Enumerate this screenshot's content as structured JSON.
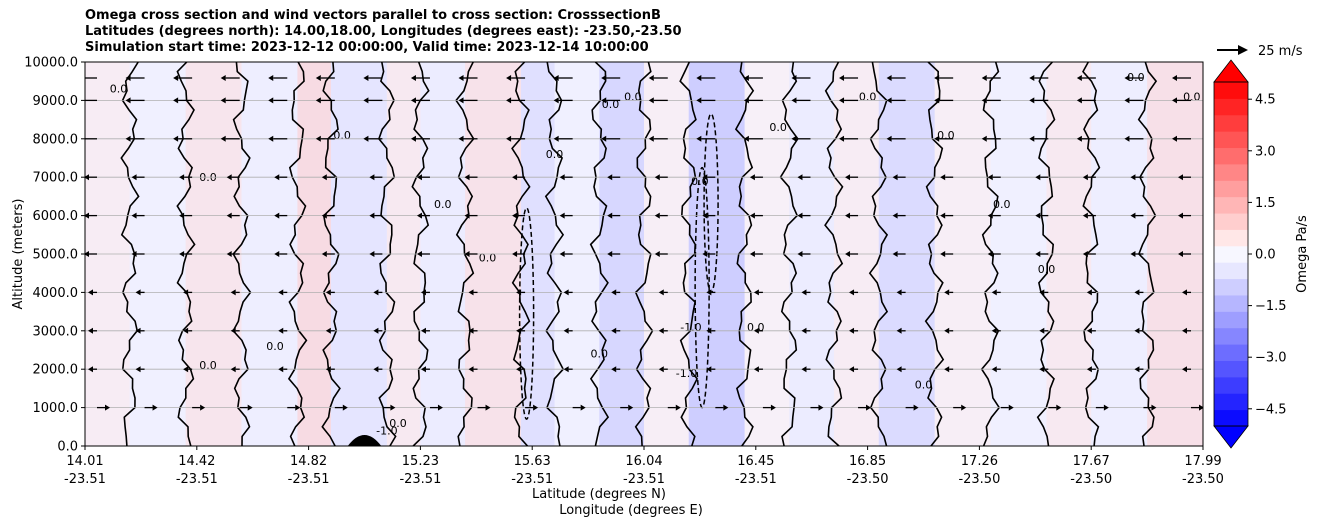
{
  "titles": [
    "Omega cross section and wind vectors parallel to cross section: CrosssectionB",
    "Latitudes (degrees north): 14.00,18.00, Longitudes (degrees east): -23.50,-23.50",
    "Simulation start time: 2023-12-12 00:00:00, Valid time: 2023-12-14 10:00:00"
  ],
  "chart_data": {
    "type": "heatmap",
    "title": "Omega cross section and wind vectors parallel to cross section: CrosssectionB",
    "ylabel": "Altitude (meters)",
    "xlabel_lines": [
      "Latitude (degrees N)",
      "Longitude (degrees E)"
    ],
    "ylim": [
      0,
      10000
    ],
    "y_ticks": [
      0,
      1000,
      2000,
      3000,
      4000,
      5000,
      6000,
      7000,
      8000,
      9000,
      10000
    ],
    "y_tick_labels": [
      "0.0",
      "1000.0",
      "2000.0",
      "3000.0",
      "4000.0",
      "5000.0",
      "6000.0",
      "7000.0",
      "8000.0",
      "9000.0",
      "10000.0"
    ],
    "x_ticks": [
      {
        "lat": "14.01",
        "lon": "-23.51"
      },
      {
        "lat": "14.42",
        "lon": "-23.51"
      },
      {
        "lat": "14.82",
        "lon": "-23.51"
      },
      {
        "lat": "15.23",
        "lon": "-23.51"
      },
      {
        "lat": "15.63",
        "lon": "-23.51"
      },
      {
        "lat": "16.04",
        "lon": "-23.51"
      },
      {
        "lat": "16.45",
        "lon": "-23.51"
      },
      {
        "lat": "16.85",
        "lon": "-23.50"
      },
      {
        "lat": "17.26",
        "lon": "-23.50"
      },
      {
        "lat": "17.67",
        "lon": "-23.50"
      },
      {
        "lat": "17.99",
        "lon": "-23.50"
      }
    ],
    "grid": "horizontal",
    "colorbar": {
      "label": "Omega Pa/s",
      "range": [
        -5.0,
        5.0
      ],
      "ticks": [
        "4.5",
        "3.0",
        "1.5",
        "0.0",
        "−1.5",
        "−3.0",
        "−4.5"
      ],
      "tick_values": [
        4.5,
        3.0,
        1.5,
        0.0,
        -1.5,
        -3.0,
        -4.5
      ],
      "cmap": "bwr",
      "levels": 21
    },
    "quiver_key": {
      "label": "25 m/s",
      "value": 25
    },
    "contour_labels": [
      "0.0",
      "-1.0"
    ],
    "bands": [
      {
        "x0": 0.0,
        "x1": 0.04,
        "v": 0.5
      },
      {
        "x0": 0.04,
        "x1": 0.09,
        "v": -0.3
      },
      {
        "x0": 0.09,
        "x1": 0.14,
        "v": 0.8
      },
      {
        "x0": 0.14,
        "x1": 0.19,
        "v": -0.4
      },
      {
        "x0": 0.19,
        "x1": 0.22,
        "v": 1.2
      },
      {
        "x0": 0.22,
        "x1": 0.27,
        "v": -0.8
      },
      {
        "x0": 0.27,
        "x1": 0.3,
        "v": 0.6
      },
      {
        "x0": 0.3,
        "x1": 0.34,
        "v": -0.5
      },
      {
        "x0": 0.34,
        "x1": 0.39,
        "v": 0.9
      },
      {
        "x0": 0.39,
        "x1": 0.42,
        "v": -1.0
      },
      {
        "x0": 0.42,
        "x1": 0.46,
        "v": -0.3
      },
      {
        "x0": 0.46,
        "x1": 0.5,
        "v": -1.4
      },
      {
        "x0": 0.5,
        "x1": 0.54,
        "v": 0.4
      },
      {
        "x0": 0.54,
        "x1": 0.59,
        "v": -1.8
      },
      {
        "x0": 0.59,
        "x1": 0.63,
        "v": 0.3
      },
      {
        "x0": 0.63,
        "x1": 0.67,
        "v": -0.5
      },
      {
        "x0": 0.67,
        "x1": 0.71,
        "v": 0.5
      },
      {
        "x0": 0.71,
        "x1": 0.76,
        "v": -1.2
      },
      {
        "x0": 0.76,
        "x1": 0.81,
        "v": 0.4
      },
      {
        "x0": 0.81,
        "x1": 0.86,
        "v": -0.3
      },
      {
        "x0": 0.86,
        "x1": 0.9,
        "v": 0.6
      },
      {
        "x0": 0.9,
        "x1": 0.95,
        "v": -0.4
      },
      {
        "x0": 0.95,
        "x1": 1.0,
        "v": 1.0
      }
    ]
  }
}
